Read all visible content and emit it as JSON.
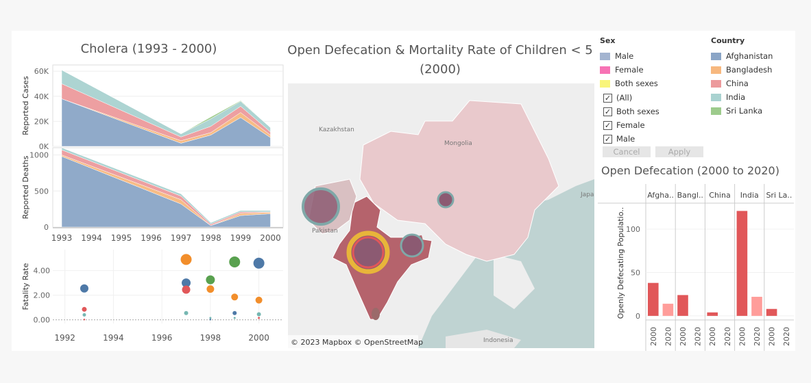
{
  "cholera": {
    "title": "Cholera  (1993 - 2000)",
    "cases_ylabel": "Reported Cases",
    "deaths_ylabel": "Reported Deaths",
    "fatality_ylabel": "Fatality Rate",
    "cases_ticks": [
      "60K",
      "40K",
      "20K",
      "0K"
    ],
    "deaths_ticks": [
      "1000",
      "500",
      "0"
    ],
    "fatality_ticks": [
      "4.00",
      "2.00",
      "0.00"
    ],
    "year_ticks": [
      "1993",
      "1994",
      "1995",
      "1996",
      "1997",
      "1998",
      "1999",
      "2000"
    ],
    "scatter_year_ticks": [
      "1992",
      "1994",
      "1996",
      "1998",
      "2000"
    ]
  },
  "map": {
    "title": "Open Defecation & Mortality Rate of Children < 5 (2000)",
    "labels": [
      "Kazakhstan",
      "Mongolia",
      "Pakistan",
      "Indonesia",
      "Japa"
    ],
    "attribution": "© 2023 Mapbox  © OpenStreetMap"
  },
  "legend": {
    "sex_title": "Sex",
    "sex_items": [
      {
        "label": "Male",
        "color": "#a3b4d0"
      },
      {
        "label": "Female",
        "color": "#f773b5"
      },
      {
        "label": "Both sexes",
        "color": "#f9f57a"
      }
    ],
    "country_title": "Country",
    "country_items": [
      {
        "label": "Afghanistan",
        "color": "#8aa5c6"
      },
      {
        "label": "Bangladesh",
        "color": "#f7b87f"
      },
      {
        "label": "China",
        "color": "#ec9a9c"
      },
      {
        "label": "India",
        "color": "#a9d2d0"
      },
      {
        "label": "Sri Lanka",
        "color": "#9dcb8c"
      }
    ]
  },
  "filter": {
    "items": [
      "(All)",
      "Both sexes",
      "Female",
      "Male"
    ],
    "cancel_label": "Cancel",
    "apply_label": "Apply"
  },
  "open_defecation": {
    "title": "Open Defecation (2000 to 2020)",
    "ylabel": "Openly Defecating Populatio..",
    "y_ticks": [
      "100",
      "50",
      "0"
    ],
    "x_ticks": [
      "2000",
      "2020"
    ]
  },
  "chart_data": [
    {
      "type": "area",
      "title": "Cholera  (1993 - 2000)",
      "ylabel": "Reported Cases",
      "x": [
        1993,
        1997,
        1998,
        1999,
        2000
      ],
      "ylim": [
        0,
        65000
      ],
      "series": [
        {
          "name": "Afghanistan",
          "color": "#8aa5c6",
          "values": [
            38000,
            2500,
            9000,
            23000,
            7000
          ]
        },
        {
          "name": "Bangladesh",
          "color": "#f7b87f",
          "values": [
            0,
            2000,
            2000,
            4000,
            2000
          ]
        },
        {
          "name": "China",
          "color": "#ec9a9c",
          "values": [
            12000,
            3000,
            5000,
            5000,
            2500
          ]
        },
        {
          "name": "India",
          "color": "#a9d2d0",
          "values": [
            11000,
            2500,
            6000,
            4000,
            3500
          ]
        },
        {
          "name": "Sri Lanka",
          "color": "#9dcb8c",
          "values": [
            0,
            0,
            1500,
            500,
            0
          ]
        }
      ]
    },
    {
      "type": "area",
      "ylabel": "Reported Deaths",
      "x": [
        1993,
        1997,
        1998,
        1999,
        2000
      ],
      "ylim": [
        0,
        1100
      ],
      "series": [
        {
          "name": "Afghanistan",
          "color": "#8aa5c6",
          "values": [
            980,
            320,
            20,
            160,
            185
          ]
        },
        {
          "name": "Bangladesh",
          "color": "#f7b87f",
          "values": [
            20,
            60,
            0,
            30,
            20
          ]
        },
        {
          "name": "China",
          "color": "#ec9a9c",
          "values": [
            70,
            50,
            20,
            20,
            5
          ]
        },
        {
          "name": "India",
          "color": "#a9d2d0",
          "values": [
            30,
            30,
            20,
            20,
            20
          ]
        }
      ]
    },
    {
      "type": "scatter",
      "ylabel": "Fatality Rate",
      "xlim": [
        1991.5,
        2001
      ],
      "ylim": [
        -0.3,
        5.7
      ],
      "points": [
        {
          "country": "Afghanistan",
          "x": 1992.8,
          "y": 2.55,
          "r": 6,
          "color": "#4e79a7"
        },
        {
          "country": "China",
          "x": 1992.8,
          "y": 0.85,
          "r": 3.5,
          "color": "#e15759"
        },
        {
          "country": "India",
          "x": 1992.8,
          "y": 0.4,
          "r": 2.5,
          "color": "#76b7b2"
        },
        {
          "country": "Sri Lanka",
          "x": 1992.8,
          "y": 0.02,
          "r": 1.2,
          "color": "#e15759"
        },
        {
          "country": "Bangladesh",
          "x": 1997,
          "y": 4.9,
          "r": 8,
          "color": "#f28e2b"
        },
        {
          "country": "Afghanistan",
          "x": 1997,
          "y": 3.0,
          "r": 6.5,
          "color": "#4e79a7"
        },
        {
          "country": "China",
          "x": 1997,
          "y": 2.45,
          "r": 6,
          "color": "#e15759"
        },
        {
          "country": "India",
          "x": 1997,
          "y": 0.55,
          "r": 3,
          "color": "#76b7b2"
        },
        {
          "country": "Sri Lanka",
          "x": 1998,
          "y": 3.25,
          "r": 6.5,
          "color": "#59a14f"
        },
        {
          "country": "Bangladesh",
          "x": 1998,
          "y": 2.5,
          "r": 5.5,
          "color": "#f28e2b"
        },
        {
          "country": "India",
          "x": 1998,
          "y": 0.15,
          "r": 1.5,
          "color": "#76b7b2"
        },
        {
          "country": "Afghanistan",
          "x": 1998,
          "y": 0.02,
          "r": 1.2,
          "color": "#4e79a7"
        },
        {
          "country": "Sri Lanka",
          "x": 1999,
          "y": 4.7,
          "r": 8,
          "color": "#59a14f"
        },
        {
          "country": "Bangladesh",
          "x": 1999,
          "y": 1.85,
          "r": 5,
          "color": "#f28e2b"
        },
        {
          "country": "Afghanistan",
          "x": 1999,
          "y": 0.55,
          "r": 3,
          "color": "#4e79a7"
        },
        {
          "country": "India",
          "x": 1999,
          "y": 0.15,
          "r": 1.5,
          "color": "#76b7b2"
        },
        {
          "country": "Afghanistan",
          "x": 2000,
          "y": 4.6,
          "r": 8,
          "color": "#4e79a7"
        },
        {
          "country": "Bangladesh",
          "x": 2000,
          "y": 1.6,
          "r": 5,
          "color": "#f28e2b"
        },
        {
          "country": "India",
          "x": 2000,
          "y": 0.45,
          "r": 3,
          "color": "#76b7b2"
        },
        {
          "country": "China",
          "x": 2000,
          "y": 0.15,
          "r": 1.5,
          "color": "#e15759"
        }
      ]
    },
    {
      "type": "bar",
      "title": "Open Defecation (2000 to 2020)",
      "ylabel": "Openly Defecating Populatio..",
      "ylim": [
        -8,
        130
      ],
      "columns": [
        "Afgha..",
        "Bangl..",
        "China",
        "India",
        "Sri La.."
      ],
      "x_ticks": [
        "2000",
        "2020"
      ],
      "values": [
        [
          38,
          14
        ],
        [
          24,
          0
        ],
        [
          4,
          0
        ],
        [
          121,
          22
        ],
        [
          8,
          0
        ]
      ],
      "colors": [
        "#e15759",
        "#ff9d9a"
      ]
    }
  ]
}
